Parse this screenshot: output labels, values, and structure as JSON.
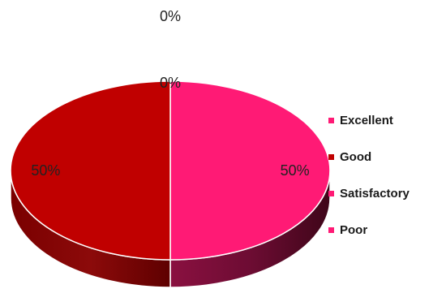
{
  "chart_data": {
    "type": "pie",
    "style": "3d",
    "categories": [
      "Excellent",
      "Good",
      "Satisfactory",
      "Poor"
    ],
    "values": [
      50,
      50,
      0,
      0
    ],
    "value_unit": "%",
    "data_labels": [
      "50%",
      "50%",
      "0%",
      "0%"
    ],
    "colors": [
      "#ff1a75",
      "#c00000",
      "#ff1a75",
      "#ff1a75"
    ],
    "side_colors": [
      "#5e0a28",
      "#800000",
      "#5e0a28",
      "#5e0a28"
    ],
    "legend": {
      "position": "right",
      "entries": [
        {
          "label": "Excellent",
          "color": "#ff1a75"
        },
        {
          "label": "Good",
          "color": "#c00000"
        },
        {
          "label": "Satisfactory",
          "color": "#ff1a75"
        },
        {
          "label": "Poor",
          "color": "#ff1a75"
        }
      ]
    },
    "title": ""
  }
}
